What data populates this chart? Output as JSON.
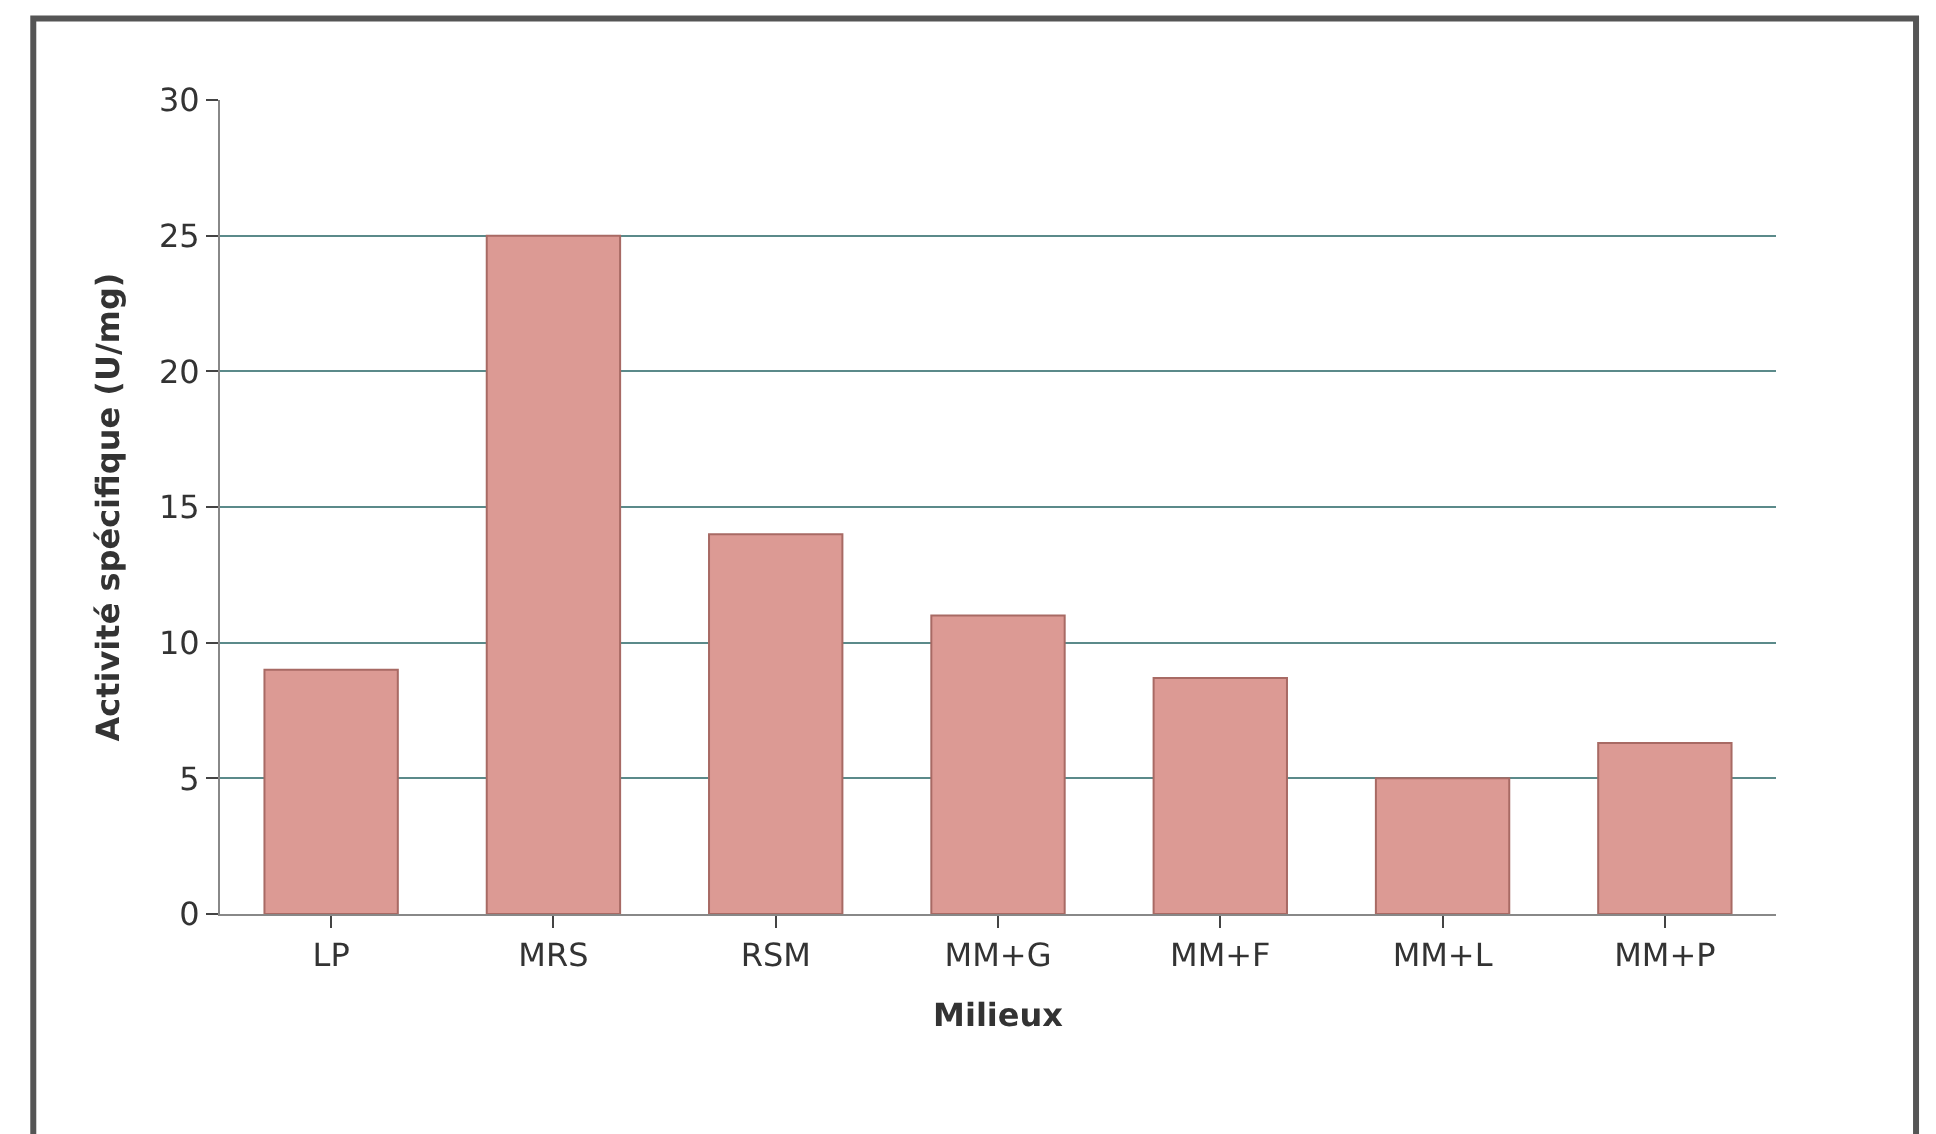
{
  "chart_data": {
    "type": "bar",
    "xlabel": "Milieux",
    "ylabel": "Activité spécifique (U/mg)",
    "categories": [
      "LP",
      "MRS",
      "RSM",
      "MM+G",
      "MM+F",
      "MM+L",
      "MM+P"
    ],
    "values": [
      9,
      25,
      14,
      11,
      8.7,
      5,
      6.3
    ],
    "color": "#dc9a94",
    "ylim": [
      0,
      30
    ],
    "yticks": [
      0,
      5,
      10,
      15,
      20,
      25,
      30
    ],
    "grid": "y"
  }
}
